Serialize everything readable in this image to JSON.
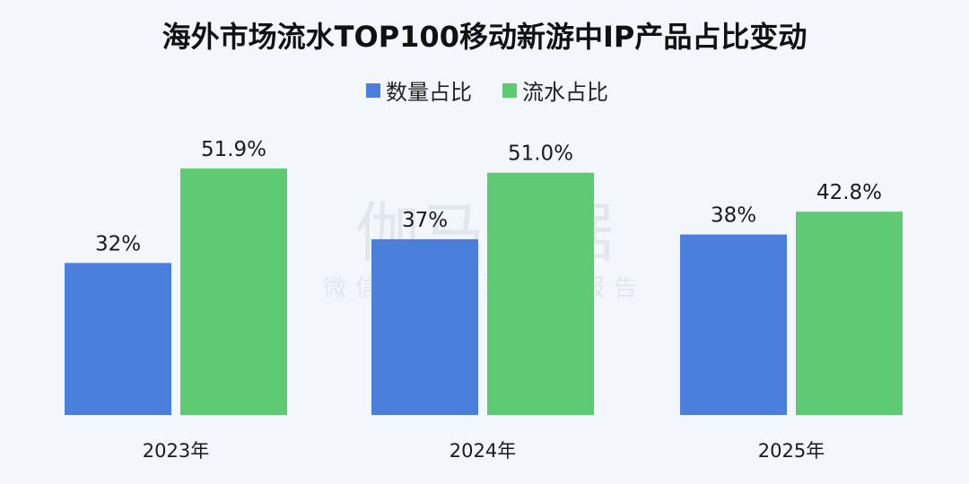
{
  "colors": {
    "background": "#f3f7fc",
    "series_1": "#4a7fdc",
    "series_2": "#5ecb74"
  },
  "watermark": {
    "main": "伽马数据",
    "sub": "微信号：游戏产业报告"
  },
  "chart_data": {
    "type": "bar",
    "title": "海外市场流水TOP100移动新游中IP产品占比变动",
    "categories": [
      "2023年",
      "2024年",
      "2025年"
    ],
    "series": [
      {
        "name": "数量占比",
        "values": [
          32,
          37,
          38
        ],
        "labels": [
          "32%",
          "37%",
          "38%"
        ],
        "color": "#4a7fdc"
      },
      {
        "name": "流水占比",
        "values": [
          51.9,
          51.0,
          42.8
        ],
        "labels": [
          "51.9%",
          "51.0%",
          "42.8%"
        ],
        "color": "#5ecb74"
      }
    ],
    "unit": "%",
    "ylim": [
      0,
      60
    ],
    "grid": false,
    "legend_position": "top-center",
    "axes_visible": false
  }
}
